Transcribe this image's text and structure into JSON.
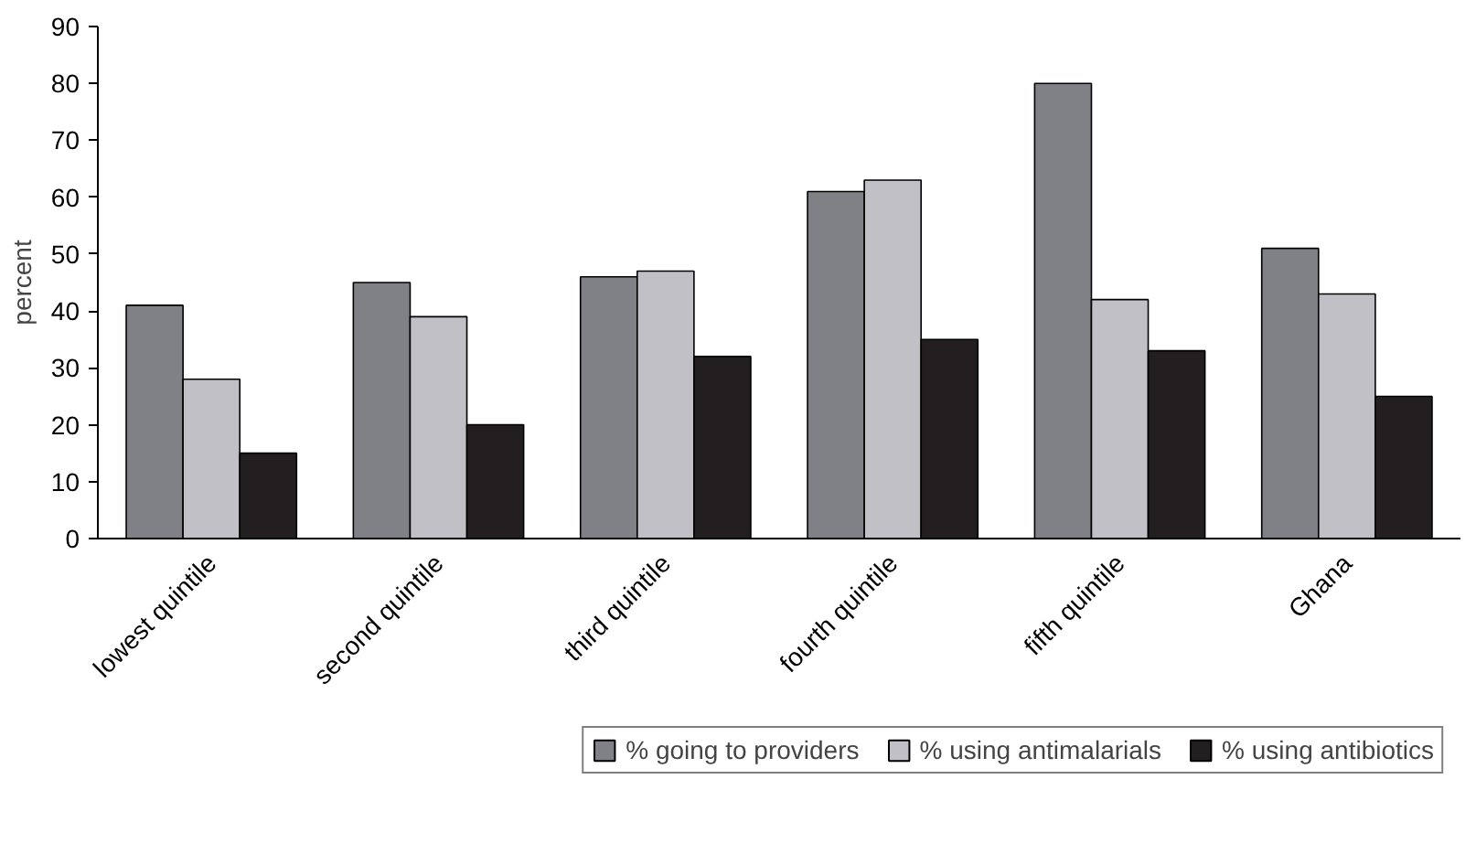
{
  "chart_data": {
    "type": "bar",
    "ylabel": "percent",
    "categories": [
      "lowest quintile",
      "second quintile",
      "third quintile",
      "fourth quintile",
      "fifth quintile",
      "Ghana"
    ],
    "series": [
      {
        "name": "% going to providers",
        "color": "#808087",
        "values": [
          41,
          45,
          46,
          61,
          80,
          51
        ]
      },
      {
        "name": "% using antimalarials",
        "color": "#c0c0c6",
        "values": [
          28,
          39,
          47,
          63,
          42,
          43
        ]
      },
      {
        "name": "% using antibiotics",
        "color": "#231f20",
        "values": [
          15,
          20,
          32,
          35,
          33,
          25
        ]
      }
    ],
    "ylim": [
      0,
      90
    ],
    "yticks": [
      0,
      10,
      20,
      30,
      40,
      50,
      60,
      70,
      80,
      90
    ],
    "grid": false,
    "legend": "bottom"
  }
}
